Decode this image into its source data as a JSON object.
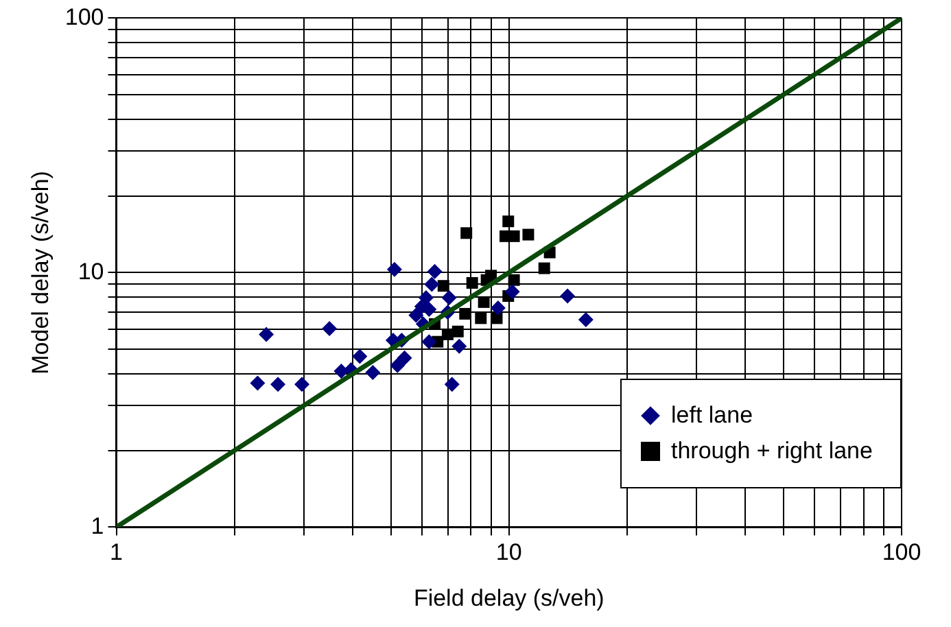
{
  "chart_data": {
    "type": "scatter",
    "xlabel": "Field delay (s/veh)",
    "ylabel": "Model delay (s/veh)",
    "log": "xy",
    "grid": true,
    "legend": "bottom right",
    "xlim": [
      1,
      100
    ],
    "ylim": [
      1,
      100
    ],
    "xticks": [
      1,
      {
        "value": 2,
        "label": null
      },
      {
        "value": 3,
        "label": null
      },
      {
        "value": 4,
        "label": null
      },
      {
        "value": 5,
        "label": null
      },
      {
        "value": 6,
        "label": null
      },
      {
        "value": 7,
        "label": null
      },
      {
        "value": 8,
        "label": null
      },
      {
        "value": 9,
        "label": null
      },
      10,
      {
        "value": 20,
        "label": null
      },
      {
        "value": 30,
        "label": null
      },
      {
        "value": 40,
        "label": null
      },
      {
        "value": 50,
        "label": null
      },
      {
        "value": 60,
        "label": null
      },
      {
        "value": 70,
        "label": null
      },
      {
        "value": 80,
        "label": null
      },
      {
        "value": 90,
        "label": null
      },
      100
    ],
    "yticks": [
      1,
      {
        "value": 2,
        "label": null
      },
      {
        "value": 3,
        "label": null
      },
      {
        "value": 4,
        "label": null
      },
      {
        "value": 5,
        "label": null
      },
      {
        "value": 6,
        "label": null
      },
      {
        "value": 7,
        "label": null
      },
      {
        "value": 8,
        "label": null
      },
      {
        "value": 9,
        "label": null
      },
      10,
      {
        "value": 20,
        "label": null
      },
      {
        "value": 30,
        "label": null
      },
      {
        "value": 40,
        "label": null
      },
      {
        "value": 50,
        "label": null
      },
      {
        "value": 60,
        "label": null
      },
      {
        "value": 70,
        "label": null
      },
      {
        "value": 80,
        "label": null
      },
      {
        "value": 90,
        "label": null
      },
      100
    ],
    "series": [
      {
        "type": "line",
        "color": "#0b4a0b",
        "marker": "none",
        "line_style": "solid",
        "x": [
          1,
          100
        ],
        "values": [
          1,
          100
        ]
      },
      {
        "name": "left lane",
        "color": "#000080",
        "marker": "diamond",
        "x": [
          2.29,
          2.58,
          2.97,
          2.41,
          3.49,
          3.74,
          3.96,
          4.17,
          4.5,
          5.11,
          5.07,
          5.33,
          5.42,
          5.2,
          7.16,
          6.47,
          6.36,
          6.15,
          6.0,
          5.8,
          6.26,
          6.05,
          6.26,
          7.04,
          6.98,
          7.47,
          9.38,
          14.1,
          15.7,
          10.2
        ],
        "values": [
          3.68,
          3.64,
          3.64,
          5.72,
          6.03,
          4.1,
          4.15,
          4.69,
          4.05,
          10.3,
          5.42,
          5.42,
          4.62,
          4.32,
          3.64,
          10.1,
          8.99,
          7.97,
          7.36,
          6.8,
          7.17,
          6.28,
          5.35,
          7.97,
          6.98,
          5.14,
          7.26,
          8.09,
          6.53,
          8.41
        ]
      },
      {
        "name": "through + right lane",
        "color": "#000000",
        "marker": "square",
        "x": [
          7.79,
          9.96,
          9.79,
          10.3,
          11.2,
          12.7,
          12.3,
          6.81,
          8.06,
          9.0,
          8.77,
          10.3,
          8.63,
          9.96,
          7.73,
          8.48,
          9.31,
          6.47,
          7.41,
          6.98,
          6.58
        ],
        "values": [
          14.3,
          15.9,
          13.9,
          13.9,
          14.1,
          12.0,
          10.4,
          8.87,
          9.11,
          9.73,
          9.35,
          9.35,
          7.66,
          8.09,
          6.89,
          6.62,
          6.62,
          6.28,
          5.87,
          5.72,
          5.35
        ]
      }
    ]
  }
}
